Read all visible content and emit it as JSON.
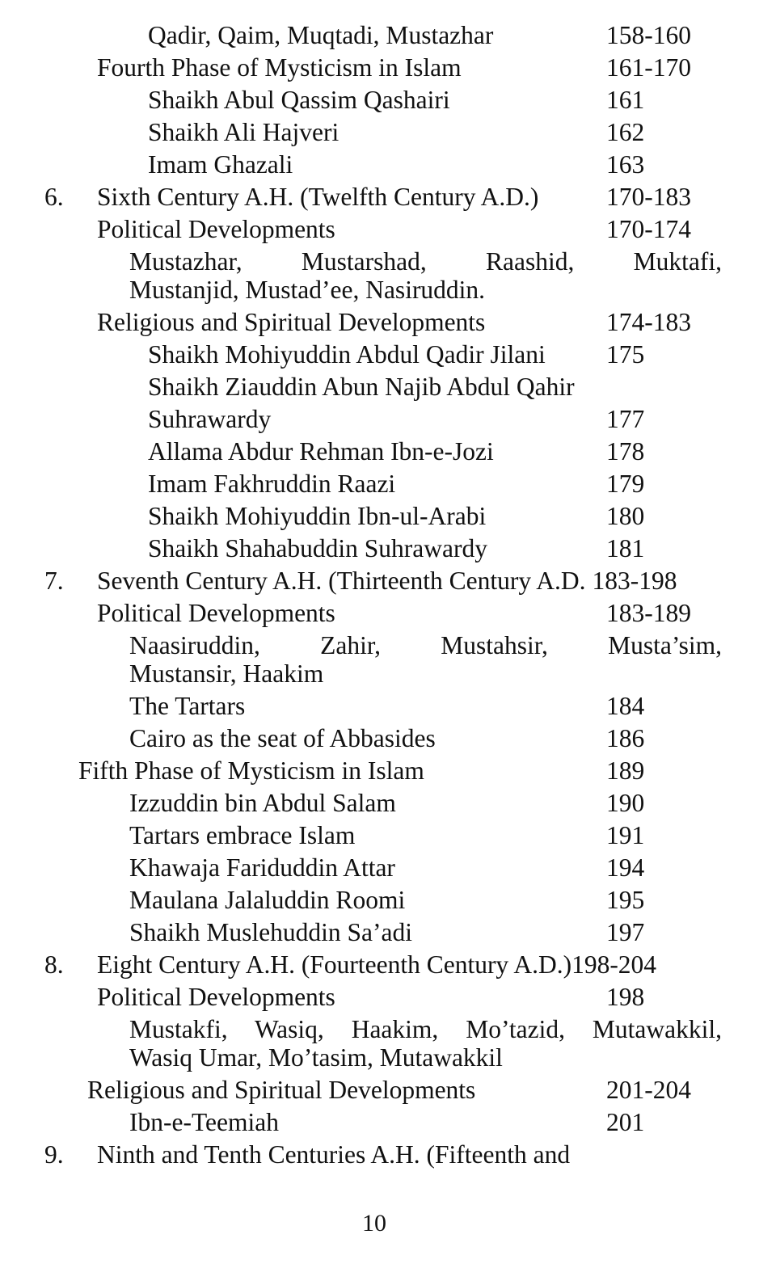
{
  "toc": [
    {
      "level": "l3",
      "text": "Qadir, Qaim, Muqtadi, Mustazhar",
      "page": "158-160"
    },
    {
      "level": "l1",
      "text": "Fourth Phase of Mysticism in Islam",
      "page": "161-170"
    },
    {
      "level": "l3",
      "text": "Shaikh Abul Qassim Qashairi",
      "page": "161"
    },
    {
      "level": "l3",
      "text": "Shaikh Ali Hajveri",
      "page": "162"
    },
    {
      "level": "l3",
      "text": "Imam Ghazali",
      "page": "163"
    },
    {
      "level": "l1",
      "num": "6.",
      "text": "Sixth Century A.H. (Twelfth Century A.D.)",
      "page": "170-183"
    },
    {
      "level": "l1",
      "text": "Political Developments",
      "page": "170-174"
    },
    {
      "level": "l2",
      "justify": true,
      "text": "Mustazhar, Mustarshad, Raashid, Muktafi,"
    },
    {
      "level": "l2",
      "text": "Mustanjid, Mustad’ee, Nasiruddin."
    },
    {
      "level": "l1",
      "text": "Religious and Spiritual Developments",
      "page": "174-183"
    },
    {
      "level": "l3",
      "text": "Shaikh Mohiyuddin Abdul Qadir Jilani",
      "page": "175"
    },
    {
      "level": "l3",
      "text": "Shaikh Ziauddin Abun Najib Abdul Qahir"
    },
    {
      "level": "l3",
      "text": "Suhrawardy",
      "page": "177"
    },
    {
      "level": "l3",
      "text": "Allama Abdur Rehman Ibn-e-Jozi",
      "page": "178"
    },
    {
      "level": "l3",
      "text": "Imam Fakhruddin Raazi",
      "page": "179"
    },
    {
      "level": "l3",
      "text": "Shaikh Mohiyuddin Ibn-ul-Arabi",
      "page": "180"
    },
    {
      "level": "l3",
      "text": "Shaikh Shahabuddin Suhrawardy",
      "page": "181"
    },
    {
      "level": "l1",
      "num": "7.",
      "text": "Seventh Century A.H. (Thirteenth Century A.D.",
      "page": "183-198",
      "inline": true
    },
    {
      "level": "l1",
      "text": "Political Developments",
      "page": "183-189"
    },
    {
      "level": "l2",
      "justify": true,
      "text": "Naasiruddin, Zahir, Mustahsir, Musta’sim,"
    },
    {
      "level": "l2",
      "text": "Mustansir, Haakim"
    },
    {
      "level": "l2",
      "text": "The Tartars",
      "page": "184"
    },
    {
      "level": "l2",
      "text": "Cairo as the seat of Abbasides",
      "page": "186"
    },
    {
      "level": "lf",
      "text": "Fifth Phase of Mysticism in Islam",
      "page": "189"
    },
    {
      "level": "l2",
      "text": "Izzuddin bin Abdul Salam",
      "page": "190"
    },
    {
      "level": "l2",
      "text": "Tartars embrace Islam",
      "page": "191"
    },
    {
      "level": "l2",
      "text": "Khawaja Fariduddin Attar",
      "page": "194"
    },
    {
      "level": "l2",
      "text": "Maulana Jalaluddin Roomi",
      "page": "195"
    },
    {
      "level": "l2",
      "text": "Shaikh Muslehuddin Sa’adi",
      "page": "197"
    },
    {
      "level": "l1",
      "num": "8.",
      "text": "Eight Century A.H. (Fourteenth Century A.D.)",
      "page": "198-204",
      "inline": true,
      "nospace": true
    },
    {
      "level": "l1",
      "text": "Political Developments",
      "page": "198"
    },
    {
      "level": "l2",
      "justify": true,
      "text": "Mustakfi, Wasiq, Haakim, Mo’tazid, Mutawakkil,"
    },
    {
      "level": "l2",
      "text": "Wasiq Umar, Mo’tasim, Mutawakkil"
    },
    {
      "level": "lr",
      "text": "Religious and Spiritual Developments",
      "page": "201-204"
    },
    {
      "level": "l2",
      "text": "Ibn-e-Teemiah",
      "page": "201"
    },
    {
      "level": "l1",
      "num": "9.",
      "text": "Ninth and Tenth Centuries A.H. (Fifteenth and"
    }
  ],
  "footer": {
    "page_number": "10"
  }
}
